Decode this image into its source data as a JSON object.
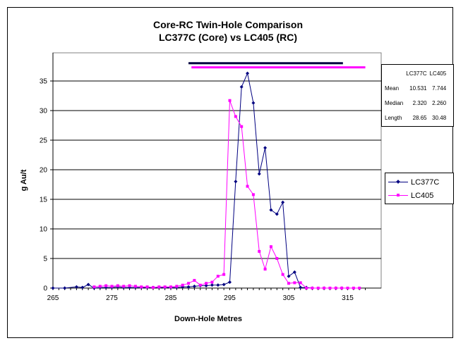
{
  "chart_data": {
    "type": "line",
    "title": [
      "Core-RC Twin-Hole Comparison",
      "LC377C (Core) vs LC405 (RC)"
    ],
    "xlabel": "Down-Hole Metres",
    "ylabel": "g Au/t",
    "xlim": [
      265,
      318
    ],
    "ylim": [
      0,
      35
    ],
    "x_ticks": [
      "265",
      "275",
      "285",
      "295",
      "305",
      "315"
    ],
    "y_ticks": [
      "0",
      "5",
      "10",
      "15",
      "20",
      "25",
      "30",
      "35"
    ],
    "grid": "horizontal",
    "legend_position": "right",
    "series": [
      {
        "name": "LC377C",
        "color": "#000080",
        "marker": "diamond",
        "x": [
          265,
          267,
          269,
          270,
          271,
          272,
          273,
          274,
          275,
          276,
          277,
          278,
          279,
          280,
          281,
          282,
          283,
          284,
          285,
          286,
          287,
          288,
          289,
          290,
          291,
          292,
          293,
          294,
          295,
          296,
          297,
          298,
          299,
          300,
          301,
          302,
          303,
          304,
          305,
          306,
          307,
          308,
          309,
          311,
          313,
          314
        ],
        "y": [
          0,
          0,
          0.2,
          0.1,
          0.6,
          0,
          0.1,
          0.1,
          0.1,
          0.2,
          0.1,
          0.1,
          0.1,
          0.1,
          0.1,
          0.1,
          0.1,
          0.1,
          0.1,
          0.1,
          0.2,
          0.2,
          0.3,
          0.4,
          0.4,
          0.5,
          0.5,
          0.6,
          1.0,
          18.0,
          34.0,
          36.3,
          31.3,
          19.3,
          23.7,
          13.2,
          12.5,
          14.5,
          2.0,
          2.7,
          0.1,
          0.1,
          0,
          0,
          0,
          0
        ],
        "x_fixed": [
          265,
          267,
          269,
          270,
          271,
          272,
          273,
          274,
          275,
          276,
          277,
          278,
          279,
          280,
          281,
          282,
          283,
          284,
          285,
          286,
          287,
          288,
          289,
          290,
          291,
          292,
          293,
          294,
          295,
          296,
          297,
          298,
          299,
          300,
          301,
          302,
          303,
          304,
          305,
          306,
          307,
          308,
          309,
          311,
          313,
          314
        ]
      },
      {
        "name": "LC405",
        "color": "#FF00FF",
        "marker": "square",
        "x": [
          272,
          273,
          274,
          275,
          276,
          277,
          278,
          279,
          280,
          281,
          282,
          283,
          284,
          285,
          286,
          287,
          288,
          289,
          290,
          291,
          292,
          293,
          294,
          295,
          296,
          297,
          298,
          299,
          300,
          301,
          302,
          303,
          304,
          305,
          306,
          307,
          308,
          309,
          310,
          311,
          312,
          313,
          314,
          315,
          316,
          317
        ],
        "y": [
          0.2,
          0.3,
          0.4,
          0.3,
          0.4,
          0.3,
          0.4,
          0.3,
          0.2,
          0.2,
          0.1,
          0.2,
          0.2,
          0.2,
          0.3,
          0.5,
          0.8,
          1.3,
          0.5,
          0.8,
          1.0,
          2.0,
          2.3,
          31.7,
          29.0,
          27.3,
          17.2,
          15.8,
          6.2,
          3.2,
          7.0,
          5.0,
          2.3,
          0.8,
          0.9,
          0.9,
          0,
          0,
          0,
          0,
          0,
          0,
          0,
          0,
          0,
          0
        ]
      }
    ],
    "intervals": [
      {
        "series": "LC377C",
        "color": "#000040",
        "start": 288.0,
        "end": 314.2,
        "y": 38.0
      },
      {
        "series": "LC405",
        "color": "#FF00FF",
        "start": 288.5,
        "end": 318.0,
        "y": 37.3
      }
    ],
    "stats_table": {
      "headers": [
        "",
        "LC377C",
        "LC405"
      ],
      "rows": [
        [
          "Mean",
          "10.531",
          "7.744"
        ],
        [
          "Median",
          "2.320",
          "2.260"
        ],
        [
          "Length",
          "28.65",
          "30.48"
        ]
      ]
    }
  }
}
